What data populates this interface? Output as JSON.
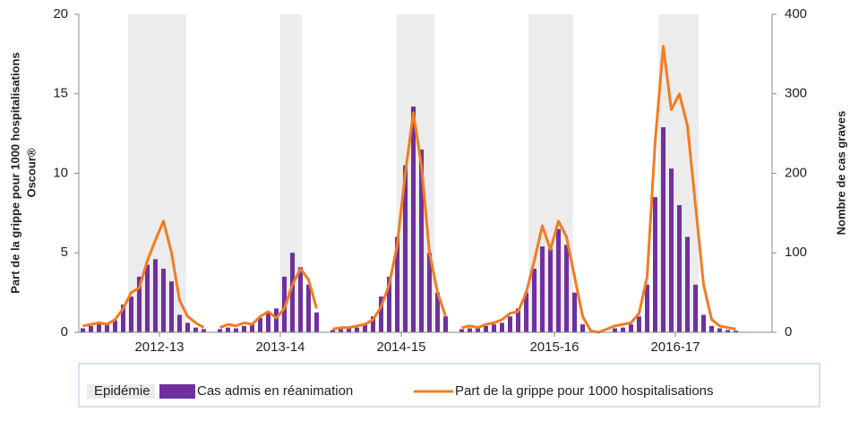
{
  "chart_data": {
    "type": "combo",
    "ylabel": [
      "Part de la grippe pour 1000  hospitalisations",
      "Oscour®"
    ],
    "y2label": "Nombre de cas graves",
    "x": [
      0,
      1,
      2,
      3,
      4,
      5,
      6,
      7,
      8,
      9,
      10,
      11,
      12,
      13,
      14,
      15,
      16,
      17,
      18,
      19,
      20,
      21,
      22,
      23,
      24,
      25,
      26,
      27,
      28,
      29,
      30,
      31,
      32,
      33,
      34,
      35,
      36,
      37,
      38,
      39,
      40,
      41,
      42,
      43,
      44,
      45,
      46,
      47,
      48,
      49,
      50,
      51,
      52,
      53,
      54,
      55,
      56,
      57,
      58,
      59,
      60,
      61,
      62,
      63,
      64,
      65,
      66,
      67,
      68,
      69,
      70,
      71,
      72,
      73,
      74,
      75,
      76,
      77,
      78,
      79,
      80,
      81,
      82,
      83,
      84,
      85
    ],
    "xlim": [
      -0.5,
      85.5
    ],
    "xticks": [
      {
        "value": 9.5,
        "label": "2012-13"
      },
      {
        "value": 24.5,
        "label": "2013-14"
      },
      {
        "value": 39.5,
        "label": "2014-15"
      },
      {
        "value": 58.5,
        "label": "2015-16"
      },
      {
        "value": 73.5,
        "label": "2016-17"
      }
    ],
    "ylim": [
      0,
      20
    ],
    "yticks": [
      0,
      5,
      10,
      15,
      20
    ],
    "y2lim": [
      0,
      400
    ],
    "y2ticks": [
      0,
      100,
      200,
      300,
      400
    ],
    "shading": {
      "name": "Epidémie",
      "color": "#ececec",
      "ranges": [
        [
          5.6,
          12.8
        ],
        [
          24.5,
          27.2
        ],
        [
          38.9,
          43.6
        ],
        [
          55.3,
          60.8
        ],
        [
          71.4,
          76.4
        ]
      ]
    },
    "series": [
      {
        "name": "Cas admis en réanimation",
        "color": "#7030a0",
        "axis": "y2",
        "values": [
          5,
          8,
          10,
          12,
          15,
          35,
          45,
          70,
          85,
          92,
          80,
          64,
          22,
          12,
          6,
          4,
          null,
          4,
          6,
          5,
          8,
          10,
          18,
          25,
          30,
          70,
          100,
          82,
          60,
          25,
          null,
          3,
          4,
          5,
          6,
          10,
          20,
          45,
          70,
          120,
          210,
          284,
          230,
          100,
          50,
          20,
          null,
          4,
          5,
          6,
          8,
          10,
          12,
          20,
          30,
          50,
          80,
          108,
          105,
          130,
          110,
          50,
          10,
          null,
          null,
          null,
          5,
          6,
          10,
          20,
          60,
          170,
          258,
          206,
          160,
          120,
          60,
          22,
          8,
          5,
          3,
          2,
          null,
          null,
          null,
          null
        ]
      },
      {
        "name": "Part de la grippe pour 1000 hospitalisations",
        "color": "#f47b20",
        "values": [
          0.4,
          0.5,
          0.6,
          0.5,
          0.8,
          1.5,
          2.5,
          2.8,
          4.5,
          5.8,
          7.0,
          5.0,
          2.0,
          1.0,
          0.6,
          0.3,
          null,
          0.3,
          0.5,
          0.4,
          0.6,
          0.5,
          1.0,
          1.3,
          0.9,
          1.5,
          3.0,
          4.0,
          3.3,
          1.5,
          null,
          0.2,
          0.3,
          0.3,
          0.4,
          0.5,
          0.8,
          1.6,
          3.0,
          5.5,
          10.0,
          13.8,
          10.5,
          5.0,
          2.5,
          1.0,
          null,
          0.3,
          0.4,
          0.3,
          0.5,
          0.6,
          0.8,
          1.2,
          1.3,
          2.5,
          4.5,
          6.7,
          5.2,
          7.0,
          6.0,
          3.5,
          1.0,
          0.1,
          0.0,
          0.2,
          0.4,
          0.5,
          0.6,
          1.2,
          3.5,
          12.0,
          18.0,
          14.0,
          15.0,
          13.0,
          8.0,
          3.0,
          0.8,
          0.4,
          0.3,
          0.2,
          null,
          null,
          null,
          null
        ]
      }
    ]
  }
}
